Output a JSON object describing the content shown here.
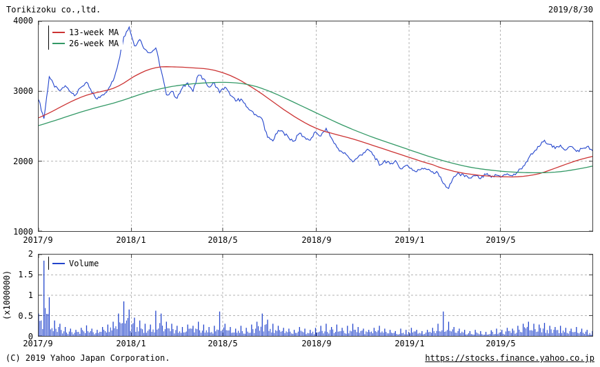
{
  "header": {
    "title": "Torikizoku co.,ltd.",
    "date": "2019/8/30"
  },
  "footer": {
    "copyright": "(C) 2019 Yahoo Japan Corporation.",
    "url": "https://stocks.finance.yahoo.co.jp"
  },
  "colors": {
    "price": "#2244cc",
    "ma13": "#cc3333",
    "ma26": "#339966",
    "volume": "#2244cc",
    "grid": "#b3b3b3",
    "border": "#404040"
  },
  "chart_data": [
    {
      "type": "line",
      "title": "Torikizoku co.,ltd. weekly stock price",
      "x_start": "2017/9",
      "x_end": "2019/8/30",
      "interval": "weekly",
      "ylim": [
        1000,
        4000
      ],
      "y_ticks": [
        1000,
        2000,
        3000,
        4000
      ],
      "y_tick_labels": [
        "4000",
        "3000",
        "2000",
        "1000"
      ],
      "grid_y": [
        2000,
        3000
      ],
      "x_ticks": [
        {
          "label": "2017/9",
          "pos": 0.0
        },
        {
          "label": "2018/1",
          "pos": 0.1676
        },
        {
          "label": "2018/5",
          "pos": 0.3324
        },
        {
          "label": "2018/9",
          "pos": 0.5014
        },
        {
          "label": "2019/1",
          "pos": 0.6689
        },
        {
          "label": "2019/5",
          "pos": 0.8338
        }
      ],
      "legend": [
        {
          "label": "13-week MA",
          "color_key": "ma13"
        },
        {
          "label": "26-week MA",
          "color_key": "ma26"
        }
      ],
      "series": [
        {
          "name": "price",
          "color_key": "price",
          "values": [
            2880,
            2610,
            3210,
            3060,
            3010,
            3080,
            2990,
            2950,
            3060,
            3130,
            2980,
            2890,
            2950,
            3020,
            3150,
            3420,
            3780,
            3920,
            3650,
            3740,
            3600,
            3550,
            3620,
            3300,
            2950,
            3000,
            2900,
            3050,
            3120,
            3000,
            3230,
            3180,
            3060,
            3120,
            2980,
            3060,
            2940,
            2860,
            2890,
            2780,
            2720,
            2650,
            2600,
            2340,
            2290,
            2440,
            2410,
            2330,
            2290,
            2400,
            2340,
            2300,
            2420,
            2360,
            2470,
            2330,
            2200,
            2130,
            2080,
            1990,
            2060,
            2120,
            2160,
            2080,
            1940,
            2010,
            1960,
            2010,
            1890,
            1940,
            1900,
            1850,
            1900,
            1880,
            1850,
            1830,
            1680,
            1610,
            1780,
            1820,
            1780,
            1760,
            1790,
            1750,
            1810,
            1770,
            1800,
            1780,
            1820,
            1790,
            1850,
            1930,
            2040,
            2130,
            2210,
            2300,
            2240,
            2180,
            2230,
            2160,
            2210,
            2140,
            2180,
            2210,
            2150
          ]
        },
        {
          "name": "13-week MA",
          "color_key": "ma13",
          "values": [
            2620,
            2655,
            2690,
            2730,
            2770,
            2810,
            2848,
            2884,
            2916,
            2944,
            2966,
            2984,
            3000,
            3018,
            3042,
            3075,
            3118,
            3168,
            3215,
            3255,
            3290,
            3318,
            3338,
            3350,
            3352,
            3350,
            3348,
            3345,
            3340,
            3335,
            3330,
            3325,
            3315,
            3300,
            3280,
            3255,
            3225,
            3190,
            3150,
            3105,
            3060,
            3010,
            2960,
            2905,
            2850,
            2795,
            2740,
            2690,
            2640,
            2595,
            2550,
            2510,
            2475,
            2445,
            2420,
            2400,
            2380,
            2360,
            2340,
            2318,
            2295,
            2270,
            2245,
            2220,
            2195,
            2170,
            2145,
            2120,
            2095,
            2070,
            2045,
            2020,
            1995,
            1972,
            1950,
            1920,
            1895,
            1875,
            1855,
            1840,
            1825,
            1815,
            1805,
            1795,
            1790,
            1785,
            1780,
            1778,
            1776,
            1775,
            1778,
            1784,
            1793,
            1805,
            1822,
            1845,
            1872,
            1900,
            1928,
            1955,
            1982,
            2008,
            2030,
            2050,
            2068
          ]
        },
        {
          "name": "26-week MA",
          "color_key": "ma26",
          "values": [
            2510,
            2532,
            2556,
            2580,
            2605,
            2630,
            2655,
            2680,
            2704,
            2727,
            2749,
            2770,
            2790,
            2810,
            2830,
            2852,
            2876,
            2902,
            2928,
            2954,
            2978,
            3000,
            3020,
            3038,
            3054,
            3068,
            3080,
            3091,
            3100,
            3108,
            3114,
            3119,
            3123,
            3126,
            3128,
            3128,
            3126,
            3121,
            3113,
            3101,
            3085,
            3064,
            3039,
            3011,
            2980,
            2947,
            2912,
            2876,
            2840,
            2804,
            2768,
            2732,
            2696,
            2660,
            2624,
            2588,
            2553,
            2519,
            2486,
            2454,
            2423,
            2393,
            2364,
            2336,
            2309,
            2283,
            2257,
            2231,
            2205,
            2179,
            2153,
            2127,
            2101,
            2076,
            2052,
            2029,
            2007,
            1986,
            1966,
            1947,
            1930,
            1915,
            1902,
            1890,
            1880,
            1871,
            1863,
            1856,
            1850,
            1845,
            1841,
            1838,
            1836,
            1835,
            1835,
            1836,
            1839,
            1844,
            1851,
            1860,
            1871,
            1884,
            1898,
            1913,
            1930
          ]
        }
      ]
    },
    {
      "type": "bar",
      "title": "Volume",
      "unit_label": "(x1000000)",
      "ylim": [
        0,
        2
      ],
      "y_ticks": [
        0,
        0.5,
        1,
        1.5,
        2
      ],
      "y_tick_labels": [
        "2",
        "1.5",
        "1",
        "0.5",
        "0"
      ],
      "grid_y": [
        0.5,
        1,
        1.5
      ],
      "legend": [
        {
          "label": "Volume",
          "color_key": "volume"
        }
      ],
      "values": [
        0.55,
        1.85,
        0.95,
        0.38,
        0.3,
        0.22,
        0.18,
        0.15,
        0.2,
        0.26,
        0.18,
        0.15,
        0.22,
        0.28,
        0.35,
        0.55,
        0.85,
        0.65,
        0.45,
        0.38,
        0.3,
        0.28,
        0.62,
        0.55,
        0.35,
        0.3,
        0.25,
        0.22,
        0.28,
        0.25,
        0.35,
        0.28,
        0.22,
        0.25,
        0.6,
        0.3,
        0.22,
        0.18,
        0.25,
        0.2,
        0.28,
        0.35,
        0.55,
        0.4,
        0.3,
        0.25,
        0.2,
        0.18,
        0.15,
        0.22,
        0.18,
        0.15,
        0.2,
        0.25,
        0.3,
        0.22,
        0.28,
        0.2,
        0.25,
        0.3,
        0.22,
        0.18,
        0.15,
        0.2,
        0.25,
        0.18,
        0.15,
        0.12,
        0.18,
        0.15,
        0.2,
        0.15,
        0.12,
        0.15,
        0.2,
        0.3,
        0.6,
        0.35,
        0.22,
        0.18,
        0.15,
        0.12,
        0.15,
        0.12,
        0.1,
        0.14,
        0.18,
        0.15,
        0.2,
        0.18,
        0.25,
        0.3,
        0.35,
        0.3,
        0.28,
        0.32,
        0.25,
        0.22,
        0.25,
        0.2,
        0.18,
        0.22,
        0.18,
        0.15,
        0.12
      ]
    }
  ]
}
